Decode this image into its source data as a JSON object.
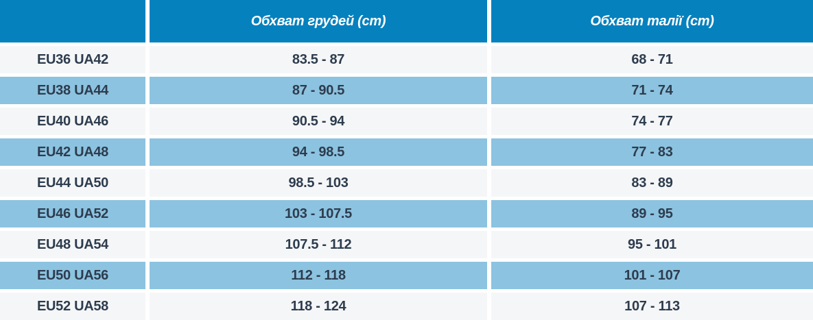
{
  "colors": {
    "header_bg": "#0581be",
    "row_alt_bg": "#8cc3e0",
    "row_bg": "#f5f6f7",
    "gap": "#ffffff",
    "header_text": "#ffffff",
    "cell_text": "#2d3c4e"
  },
  "table": {
    "headers": [
      "",
      "Обхват грудей (ст)",
      "Обхват талії (ст)"
    ],
    "rows": [
      {
        "size": "EU36 UA42",
        "chest": "83.5 - 87",
        "waist": "68 - 71"
      },
      {
        "size": "EU38 UA44",
        "chest": "87 - 90.5",
        "waist": "71 - 74"
      },
      {
        "size": "EU40 UA46",
        "chest": "90.5 - 94",
        "waist": "74 - 77"
      },
      {
        "size": "EU42 UA48",
        "chest": "94 - 98.5",
        "waist": "77 - 83"
      },
      {
        "size": "EU44 UA50",
        "chest": "98.5 - 103",
        "waist": "83 - 89"
      },
      {
        "size": "EU46 UA52",
        "chest": "103 - 107.5",
        "waist": "89 - 95"
      },
      {
        "size": "EU48 UA54",
        "chest": "107.5 - 112",
        "waist": "95 - 101"
      },
      {
        "size": "EU50 UA56",
        "chest": "112 - 118",
        "waist": "101 - 107"
      },
      {
        "size": "EU52 UA58",
        "chest": "118 - 124",
        "waist": "107 - 113"
      }
    ]
  }
}
